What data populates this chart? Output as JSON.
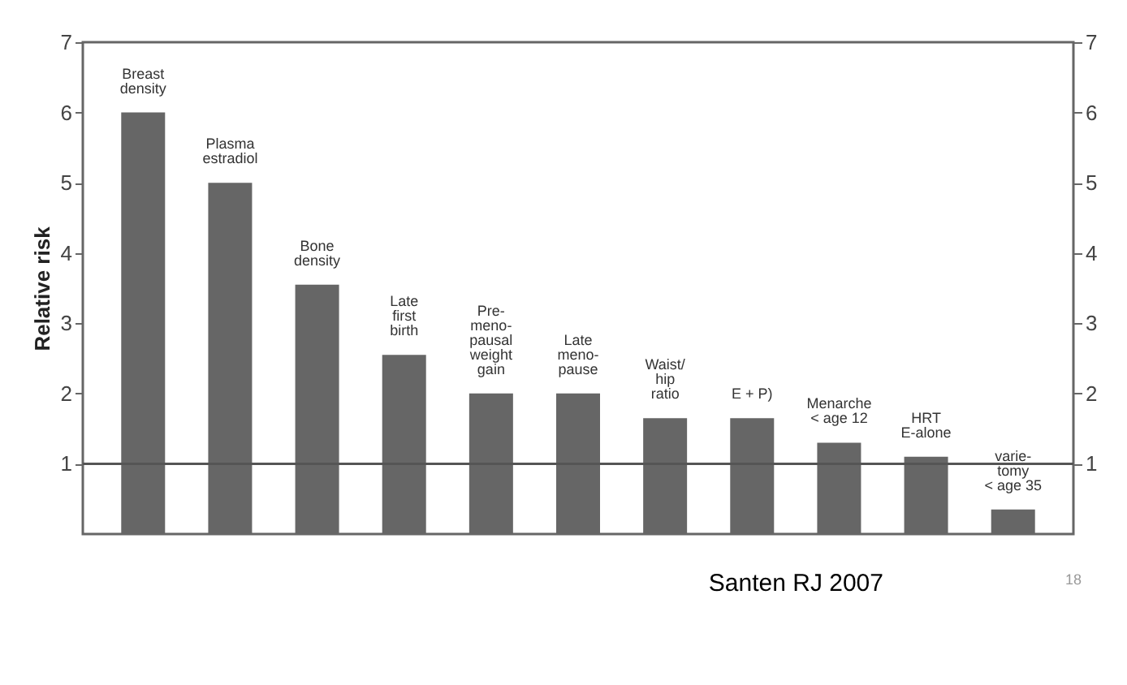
{
  "chart_data": {
    "type": "bar",
    "ylabel": "Relative risk",
    "categories": [
      "Breast\ndensity",
      "Plasma\nestradiol",
      "Bone\ndensity",
      "Late\nfirst\nbirth",
      "Pre-\nmeno-\npausal\nweight\ngain",
      "Late\nmeno-\npause",
      "Waist/\nhip\nratio",
      "E + P)",
      "Menarche\n< age 12",
      "HRT\nE-alone",
      "varie-\ntomy\n< age 35"
    ],
    "values": [
      6,
      5,
      3.55,
      2.55,
      2.0,
      2.0,
      1.65,
      1.65,
      1.3,
      1.1,
      0.35
    ],
    "color": "#666666",
    "ylim": [
      0,
      7
    ],
    "yticks": [
      1,
      2,
      3,
      4,
      5,
      6,
      7
    ],
    "y2lim": [
      0,
      7
    ],
    "y2ticks": [
      1,
      2,
      3,
      4,
      5,
      6,
      7
    ],
    "ref_lines": [
      {
        "axis": "y",
        "value": 1,
        "color": "#555555"
      }
    ],
    "annotations": [
      "Santen RJ 2007",
      "18"
    ],
    "grid": false
  }
}
